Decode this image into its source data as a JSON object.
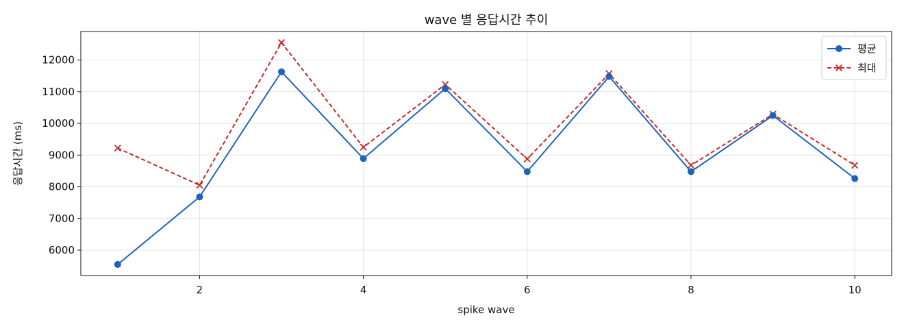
{
  "chart_data": {
    "type": "line",
    "title": "wave 별 응답시간 추이",
    "xlabel": "spike wave",
    "ylabel": "응답시간 (ms)",
    "x": [
      1,
      2,
      3,
      4,
      5,
      6,
      7,
      8,
      9,
      10
    ],
    "xticks": [
      2,
      4,
      6,
      8,
      10
    ],
    "yticks": [
      6000,
      7000,
      8000,
      9000,
      10000,
      11000,
      12000
    ],
    "xlim": [
      0.55,
      10.45
    ],
    "ylim": [
      5200,
      12900
    ],
    "grid": true,
    "legend_position": "top-right",
    "series": [
      {
        "name": "평균",
        "color": "#1f63b8",
        "line_style": "solid",
        "marker": "circle",
        "values": [
          5550,
          7680,
          11630,
          8890,
          11100,
          8480,
          11480,
          8480,
          10250,
          8260
        ]
      },
      {
        "name": "최대",
        "color": "#c62828",
        "line_style": "dashed",
        "marker": "x",
        "values": [
          9220,
          8050,
          12550,
          9250,
          11230,
          8880,
          11570,
          8680,
          10290,
          8680
        ]
      }
    ]
  }
}
